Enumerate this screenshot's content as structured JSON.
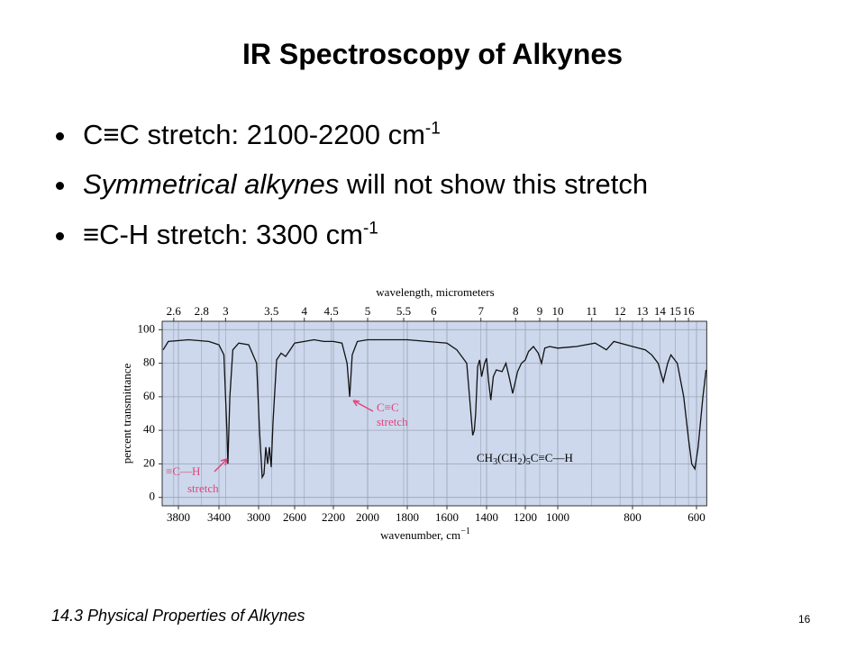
{
  "slide": {
    "title": "IR Spectroscopy of Alkynes",
    "bullets": [
      {
        "text": "C≡C stretch: 2100-2200 cm",
        "sup": "-1"
      },
      {
        "italic": "Symmetrical alkynes",
        "text": " will not show this stretch"
      },
      {
        "text": "≡C-H stretch: 3300 cm",
        "sup": "-1"
      }
    ],
    "footer": "14.3 Physical Properties of Alkynes",
    "page_number": "16"
  },
  "chart_data": {
    "type": "line",
    "color": "#111111",
    "background": "#cdd8ec",
    "grid": true,
    "x_label": "wavenumber, cm",
    "x_label_sup": "−1",
    "x2_label": "wavelength, micrometers",
    "y_label": "percent transmittance",
    "xlim": [
      3960,
      568
    ],
    "xticks": [
      3800,
      3400,
      3000,
      2600,
      2200,
      2000,
      1800,
      1600,
      1400,
      1200,
      1000,
      800,
      600
    ],
    "x2ticks": [
      2.6,
      2.8,
      3,
      3.5,
      4,
      4.5,
      5,
      5.5,
      6,
      7,
      8,
      9,
      10,
      11,
      12,
      13,
      14,
      15,
      16
    ],
    "ylim": [
      -5,
      105
    ],
    "yticks": [
      0,
      20,
      40,
      60,
      80,
      100
    ],
    "x": [
      3950,
      3900,
      3700,
      3500,
      3400,
      3350,
      3320,
      3310,
      3290,
      3260,
      3200,
      3100,
      3020,
      2990,
      2960,
      2940,
      2920,
      2900,
      2880,
      2860,
      2840,
      2800,
      2750,
      2700,
      2650,
      2600,
      2400,
      2300,
      2200,
      2150,
      2120,
      2105,
      2090,
      2060,
      2000,
      1800,
      1700,
      1600,
      1550,
      1500,
      1486,
      1470,
      1462,
      1455,
      1445,
      1435,
      1425,
      1410,
      1400,
      1390,
      1378,
      1365,
      1350,
      1320,
      1300,
      1280,
      1265,
      1240,
      1220,
      1200,
      1180,
      1150,
      1120,
      1100,
      1080,
      1050,
      1000,
      950,
      900,
      870,
      850,
      800,
      760,
      740,
      720,
      704,
      690,
      680,
      660,
      640,
      625,
      615,
      605,
      595,
      580,
      570
    ],
    "values": [
      88,
      93,
      94,
      93,
      91,
      85,
      40,
      20,
      60,
      88,
      92,
      91,
      80,
      40,
      12,
      14,
      30,
      20,
      30,
      18,
      45,
      82,
      86,
      84,
      88,
      92,
      94,
      93,
      93,
      92,
      80,
      60,
      85,
      93,
      94,
      94,
      93,
      92,
      88,
      80,
      60,
      37,
      40,
      50,
      78,
      82,
      72,
      80,
      83,
      70,
      58,
      72,
      76,
      75,
      80,
      70,
      62,
      75,
      80,
      82,
      87,
      90,
      86,
      80,
      89,
      90,
      89,
      90,
      92,
      88,
      93,
      90,
      88,
      85,
      80,
      69,
      80,
      85,
      80,
      60,
      35,
      20,
      17,
      30,
      60,
      76
    ],
    "annotations": [
      {
        "lines": [
          "C≡C",
          "stretch"
        ],
        "color": "#e0457b"
      },
      {
        "lines": [
          "≡C—H",
          "stretch"
        ],
        "color": "#e0457b"
      }
    ],
    "formula": [
      {
        "t": "CH"
      },
      {
        "sub": "3"
      },
      {
        "t": "(CH"
      },
      {
        "sub": "2"
      },
      {
        "t": ")"
      },
      {
        "sub": "5"
      },
      {
        "t": "C≡C—H"
      }
    ]
  }
}
